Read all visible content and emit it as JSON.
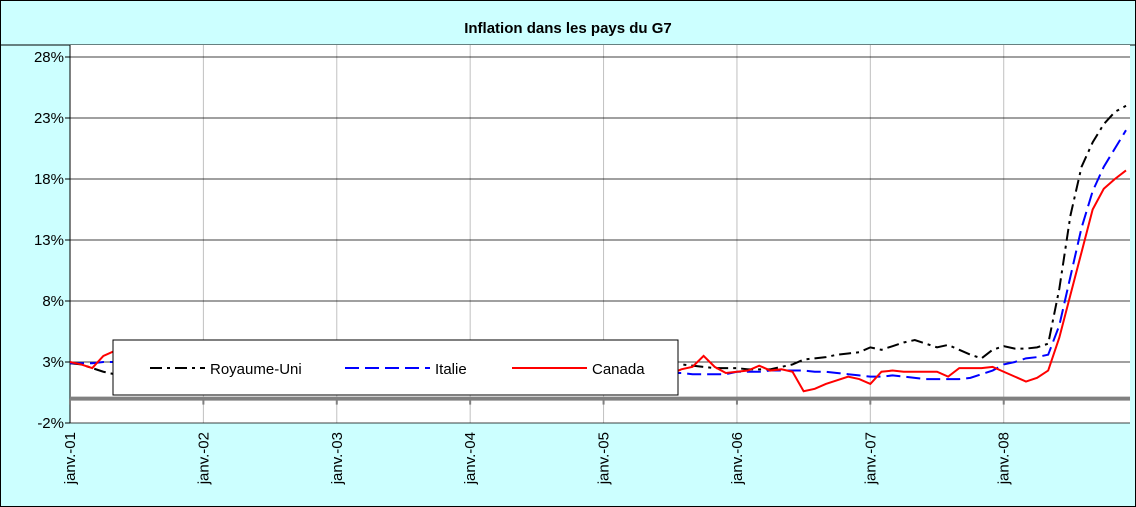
{
  "chart_data": {
    "type": "line",
    "title": "Inflation dans les pays du G7",
    "categories": [
      "janv.-01",
      null,
      null,
      null,
      null,
      null,
      null,
      null,
      null,
      null,
      null,
      null,
      "janv.-02",
      null,
      null,
      null,
      null,
      null,
      null,
      null,
      null,
      null,
      null,
      null,
      "janv.-03",
      null,
      null,
      null,
      null,
      null,
      null,
      null,
      null,
      null,
      null,
      null,
      "janv.-04",
      null,
      null,
      null,
      null,
      null,
      null,
      null,
      null,
      null,
      null,
      null,
      "janv.-05",
      null,
      null,
      null,
      null,
      null,
      null,
      null,
      null,
      null,
      null,
      null,
      "janv.-06",
      null,
      null,
      null,
      null,
      null,
      null,
      null,
      null,
      null,
      null,
      null,
      "janv.-07",
      null,
      null,
      null,
      null,
      null,
      null,
      null,
      null,
      null,
      null,
      null,
      "janv.-08",
      null,
      null,
      null,
      null,
      null,
      null,
      null,
      null,
      null,
      null,
      null
    ],
    "series": [
      {
        "name": "Royaume-Uni",
        "color": "#000000",
        "style": "dashdot",
        "values": [
          2.9,
          2.8,
          2.5,
          2.2,
          2.0,
          2.1,
          2.2,
          2.3,
          2.3,
          2.2,
          2.1,
          2.0,
          2.0,
          2.1,
          2.2,
          2.3,
          2.4,
          2.5,
          2.6,
          2.7,
          2.8,
          2.9,
          3.0,
          3.0,
          3.0,
          3.1,
          3.0,
          2.9,
          2.8,
          2.8,
          2.7,
          2.7,
          2.8,
          2.9,
          2.9,
          2.8,
          2.7,
          2.6,
          2.6,
          2.5,
          2.6,
          2.7,
          2.7,
          2.8,
          2.8,
          2.9,
          2.9,
          2.9,
          2.9,
          2.9,
          2.9,
          2.8,
          2.8,
          2.8,
          2.8,
          2.8,
          2.7,
          2.6,
          2.5,
          2.5,
          2.5,
          2.4,
          2.4,
          2.4,
          2.6,
          2.8,
          3.2,
          3.3,
          3.4,
          3.6,
          3.7,
          3.8,
          4.2,
          4.0,
          4.3,
          4.6,
          4.8,
          4.5,
          4.2,
          4.4,
          4.0,
          3.6,
          3.3,
          4.0,
          4.3,
          4.1,
          4.1,
          4.2,
          4.5,
          9,
          15,
          19,
          21,
          22.5,
          23.5,
          24
        ]
      },
      {
        "name": "Italie",
        "color": "#0000ff",
        "style": "dashed",
        "values": [
          2.9,
          2.9,
          2.9,
          3.0,
          3.0,
          2.9,
          2.8,
          2.8,
          2.7,
          2.7,
          2.6,
          2.5,
          2.4,
          2.5,
          2.5,
          2.5,
          2.4,
          2.4,
          2.5,
          2.6,
          2.8,
          2.9,
          2.9,
          2.9,
          2.8,
          2.7,
          2.7,
          2.6,
          2.5,
          2.5,
          2.6,
          2.6,
          2.7,
          2.7,
          2.6,
          2.5,
          2.3,
          2.4,
          2.5,
          2.3,
          2.4,
          2.4,
          2.3,
          2.3,
          2.2,
          2.2,
          2.2,
          2.2,
          2.0,
          2.0,
          2.0,
          2.0,
          2.0,
          2.1,
          2.1,
          2.1,
          2.0,
          2.0,
          2.0,
          2.0,
          2.2,
          2.2,
          2.2,
          2.3,
          2.3,
          2.3,
          2.3,
          2.2,
          2.2,
          2.1,
          2.0,
          1.9,
          1.8,
          1.8,
          1.9,
          1.8,
          1.7,
          1.6,
          1.6,
          1.6,
          1.6,
          1.7,
          2.0,
          2.3,
          2.8,
          3.0,
          3.3,
          3.4,
          3.6,
          6,
          10,
          14,
          17,
          19,
          20.5,
          22
        ]
      },
      {
        "name": "Canada",
        "color": "#ff0000",
        "style": "solid",
        "values": [
          3.0,
          2.8,
          2.5,
          3.5,
          3.9,
          3.4,
          2.7,
          2.6,
          2.5,
          2.0,
          1.6,
          1.0,
          1.2,
          1.6,
          2.1,
          1.8,
          1.0,
          1.3,
          2.1,
          2.6,
          2.3,
          3.2,
          4.3,
          3.9,
          4.5,
          4.6,
          4.3,
          3.0,
          2.9,
          2.6,
          2.3,
          2.2,
          2.2,
          1.6,
          1.6,
          2.0,
          1.2,
          0.7,
          0.8,
          1.7,
          2.4,
          2.5,
          2.3,
          1.8,
          1.8,
          2.3,
          2.4,
          2.2,
          1.9,
          2.1,
          2.3,
          2.3,
          1.6,
          1.7,
          2.0,
          2.4,
          2.6,
          3.5,
          2.6,
          2.1,
          2.2,
          2.3,
          2.7,
          2.3,
          2.4,
          2.2,
          0.6,
          0.8,
          1.2,
          1.5,
          1.8,
          1.6,
          1.2,
          2.2,
          2.3,
          2.2,
          2.2,
          2.2,
          2.2,
          1.8,
          2.5,
          2.5,
          2.5,
          2.6,
          2.2,
          1.8,
          1.4,
          1.7,
          2.3,
          5,
          8.5,
          12,
          15.5,
          17.2,
          18,
          18.7
        ]
      }
    ],
    "ylim": [
      -2,
      28
    ],
    "yticks": [
      {
        "value": -2,
        "label": "-2%"
      },
      {
        "value": 3,
        "label": "3%"
      },
      {
        "value": 8,
        "label": "8%"
      },
      {
        "value": 13,
        "label": "13%"
      },
      {
        "value": 18,
        "label": "18%"
      },
      {
        "value": 23,
        "label": "23%"
      },
      {
        "value": 28,
        "label": "28%"
      }
    ],
    "grid": true,
    "legend": "lower left"
  }
}
